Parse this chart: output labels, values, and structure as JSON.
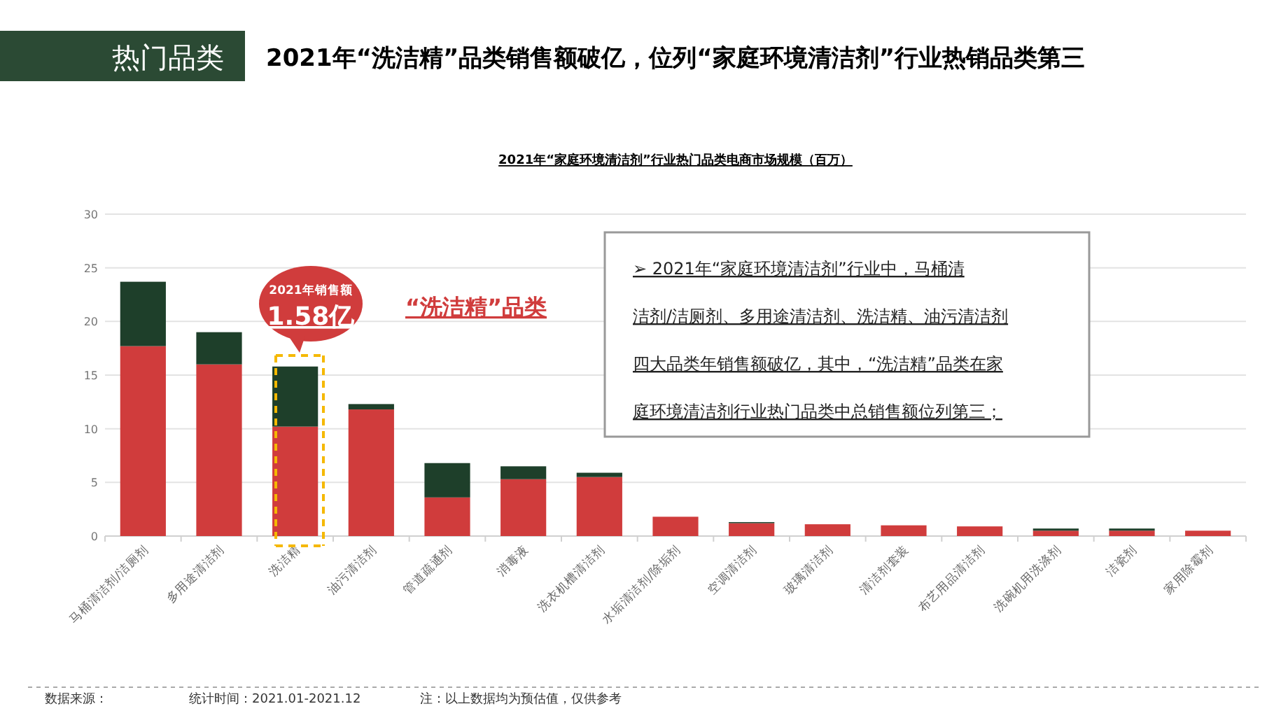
{
  "chart_data": {
    "type": "bar",
    "stacked": true,
    "title": "2021年“洗洁精”品类销售额破亿，位列“家庭环境清洁剂”行业热销品类第三",
    "subtitle": "2021年“家庭环境清洁剂”行业热门品类电商市场规模（百万）",
    "categories": [
      "马桶清洁剂/洁厕剂",
      "多用途清洁剂",
      "洗洁精",
      "油污清洁剂",
      "管道疏通剂",
      "消毒液",
      "洗衣机槽清洁剂",
      "水垢清洁剂/除垢剂",
      "空调清洁剂",
      "玻璃清洁剂",
      "清洁剂套装",
      "布艺用品清洁剂",
      "洗碗机用洗涤剂",
      "洁瓷剂",
      "家用除霉剂"
    ],
    "series": [
      {
        "color": "#d03c3c",
        "values": [
          17.7,
          16.0,
          10.2,
          11.8,
          3.6,
          5.3,
          5.5,
          1.8,
          1.2,
          1.1,
          1.0,
          0.9,
          0.5,
          0.5,
          0.5
        ]
      },
      {
        "color": "#1e3f2a",
        "values": [
          6.0,
          3.0,
          5.6,
          0.5,
          3.2,
          1.2,
          0.4,
          0,
          0.1,
          0,
          0,
          0,
          0.2,
          0.2,
          0
        ]
      }
    ],
    "ylim": [
      0,
      30
    ],
    "yticks": [
      0,
      5,
      10,
      15,
      20,
      25,
      30
    ],
    "grid": "y",
    "annotations": [
      "热门品类",
      "2021年销售额",
      "1.58亿",
      "“洗洁精”品类",
      "➢ 2021年“家庭环境清洁剂”行业中，马桶清洁剂/洁厕剂、多用途清洁剂、洗洁精、油污清洁剂四大品类年销售额破亿，其中，“洗洁精”品类在家庭环境清洁剂行业热门品类中总销售额位列第三；",
      "数据来源：",
      "统计时间：2021.01-2021.12",
      "注：以上数据均为预估值，仅供参考"
    ]
  }
}
